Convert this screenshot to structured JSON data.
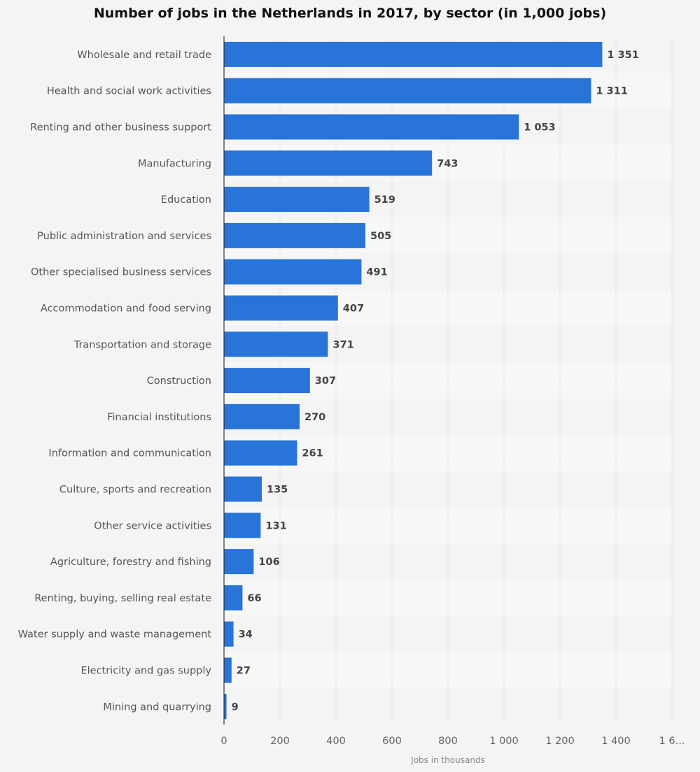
{
  "chart_data": {
    "type": "bar",
    "orientation": "horizontal",
    "title": "Number of jobs in the Netherlands in 2017, by sector (in 1,000 jobs)",
    "xlabel": "Jobs in thousands",
    "ylabel": "",
    "xlim": [
      0,
      1600
    ],
    "ticks": [
      0,
      200,
      400,
      600,
      800,
      1000,
      1200,
      1400,
      1600
    ],
    "tick_labels": [
      "0",
      "200",
      "400",
      "600",
      "800",
      "1 000",
      "1 200",
      "1 400",
      "1 6..."
    ],
    "grid": true,
    "bar_color": "#2874d8",
    "categories": [
      "Wholesale and retail trade",
      "Health and social work activities",
      "Renting and other business support",
      "Manufacturing",
      "Education",
      "Public administration and services",
      "Other specialised business services",
      "Accommodation and food serving",
      "Transportation and storage",
      "Construction",
      "Financial institutions",
      "Information and communication",
      "Culture, sports and recreation",
      "Other service activities",
      "Agriculture, forestry and fishing",
      "Renting, buying, selling real estate",
      "Water supply and waste management",
      "Electricity and gas supply",
      "Mining and quarrying"
    ],
    "values": [
      1351,
      1311,
      1053,
      743,
      519,
      505,
      491,
      407,
      371,
      307,
      270,
      261,
      135,
      131,
      106,
      66,
      34,
      27,
      9
    ],
    "value_labels": [
      "1 351",
      "1 311",
      "1 053",
      "743",
      "519",
      "505",
      "491",
      "407",
      "371",
      "307",
      "270",
      "261",
      "135",
      "131",
      "106",
      "66",
      "34",
      "27",
      "9"
    ]
  }
}
